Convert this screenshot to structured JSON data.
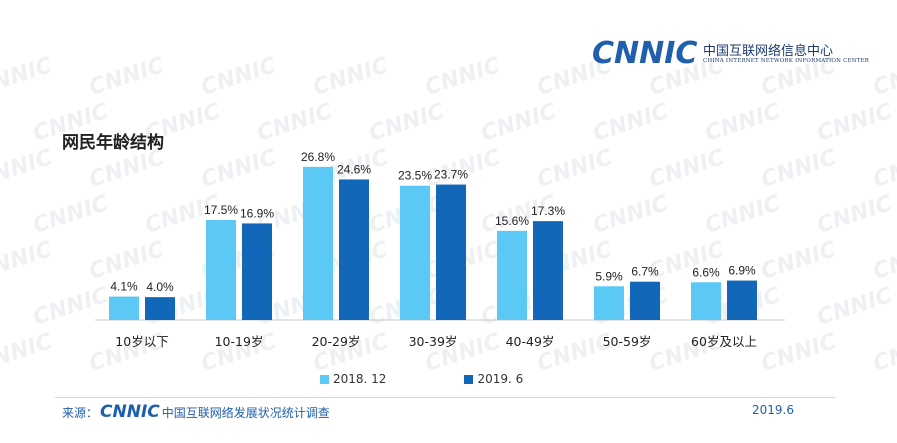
{
  "logo": {
    "word": "CNNIC",
    "cn": "中国互联网络信息中心",
    "en": "CHINA INTERNET NETWORK INFORMATION CENTER"
  },
  "watermark": "CNNIC",
  "title": "网民年龄结构",
  "chart_data": {
    "type": "bar",
    "categories": [
      "10岁以下",
      "10-19岁",
      "20-29岁",
      "30-39岁",
      "40-49岁",
      "50-59岁",
      "60岁及以上"
    ],
    "series": [
      {
        "name": "2018. 12",
        "color": "#5bc8f5",
        "values": [
          4.1,
          17.5,
          26.8,
          23.5,
          15.6,
          5.9,
          6.6
        ],
        "labels": [
          "4.1%",
          "17.5%",
          "26.8%",
          "23.5%",
          "15.6%",
          "5.9%",
          "6.6%"
        ]
      },
      {
        "name": "2019. 6",
        "color": "#1267b9",
        "values": [
          4.0,
          16.9,
          24.6,
          23.7,
          17.3,
          6.7,
          6.9
        ],
        "labels": [
          "4.0%",
          "16.9%",
          "24.6%",
          "23.7%",
          "17.3%",
          "6.7%",
          "6.9%"
        ]
      }
    ],
    "ylim": [
      0,
      28
    ],
    "grid": false,
    "legend": "bottom"
  },
  "footer": {
    "source_label": "来源：",
    "source_logo": "CNNIC",
    "source_text": "中国互联网络发展状况统计调查",
    "date": "2019.6"
  }
}
